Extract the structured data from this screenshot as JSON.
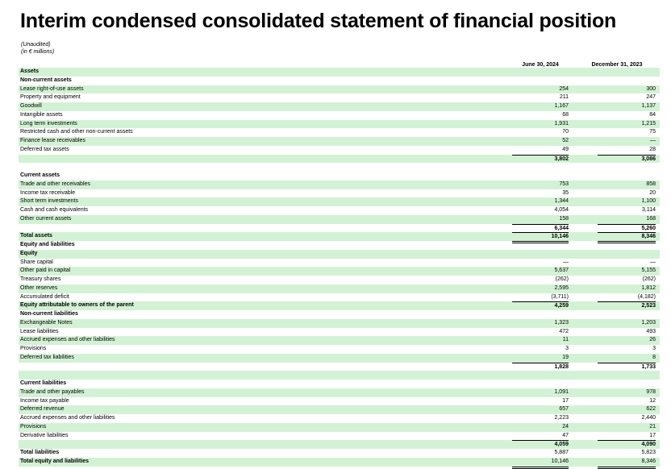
{
  "title": "Interim condensed consolidated statement of financial position",
  "subtitle": {
    "line1": "(Unaudited)",
    "line2": "(in € millions)"
  },
  "columns": {
    "col1": "June 30, 2024",
    "col2": "December 31, 2023"
  },
  "rows": [
    {
      "label": "Assets",
      "v1": "",
      "v2": "",
      "bold": true,
      "shade": true
    },
    {
      "label": "Non-current assets",
      "v1": "",
      "v2": "",
      "bold": true
    },
    {
      "label": "Lease right-of-use assets",
      "v1": "254",
      "v2": "300",
      "shade": true
    },
    {
      "label": "Property and equipment",
      "v1": "211",
      "v2": "247"
    },
    {
      "label": "Goodwill",
      "v1": "1,167",
      "v2": "1,137",
      "shade": true
    },
    {
      "label": "Intangible assets",
      "v1": "68",
      "v2": "84"
    },
    {
      "label": "Long term investments",
      "v1": "1,931",
      "v2": "1,215",
      "shade": true
    },
    {
      "label": "Restricted cash and other non-current assets",
      "v1": "70",
      "v2": "75"
    },
    {
      "label": "Finance lease receivables",
      "v1": "52",
      "v2": "—",
      "shade": true
    },
    {
      "label": "Deferred tax assets",
      "v1": "49",
      "v2": "28"
    },
    {
      "label": "",
      "v1": "3,802",
      "v2": "3,086",
      "shade": true,
      "total": true
    },
    {
      "label": "",
      "v1": "",
      "v2": ""
    },
    {
      "label": "Current assets",
      "v1": "",
      "v2": "",
      "bold": true
    },
    {
      "label": "Trade and other receivables",
      "v1": "753",
      "v2": "858",
      "shade": true
    },
    {
      "label": "Income tax receivable",
      "v1": "35",
      "v2": "20"
    },
    {
      "label": "Short term investments",
      "v1": "1,344",
      "v2": "1,100",
      "shade": true
    },
    {
      "label": "Cash and cash equivalents",
      "v1": "4,054",
      "v2": "3,114"
    },
    {
      "label": "Other current assets",
      "v1": "158",
      "v2": "168",
      "shade": true
    },
    {
      "label": "",
      "v1": "6,344",
      "v2": "5,260",
      "total": true
    },
    {
      "label": "Total assets",
      "v1": "10,146",
      "v2": "8,346",
      "bold": true,
      "shade": true,
      "total": true,
      "final": true
    },
    {
      "label": "Equity and liabilities",
      "v1": "",
      "v2": "",
      "bold": true
    },
    {
      "label": "Equity",
      "v1": "",
      "v2": "",
      "bold": true,
      "shade": true
    },
    {
      "label": "Share capital",
      "v1": "—",
      "v2": "—"
    },
    {
      "label": "Other paid in capital",
      "v1": "5,637",
      "v2": "5,155",
      "shade": true
    },
    {
      "label": "Treasury shares",
      "v1": "(262)",
      "v2": "(262)"
    },
    {
      "label": "Other reserves",
      "v1": "2,595",
      "v2": "1,812",
      "shade": true
    },
    {
      "label": "Accumulated deficit",
      "v1": "(3,711)",
      "v2": "(4,182)"
    },
    {
      "label": "Equity attributable to owners of the parent",
      "v1": "4,259",
      "v2": "2,523",
      "bold": true,
      "shade": true,
      "total": true
    },
    {
      "label": "Non-current liabilities",
      "v1": "",
      "v2": "",
      "bold": true
    },
    {
      "label": "Exchangeable Notes",
      "v1": "1,323",
      "v2": "1,203",
      "shade": true
    },
    {
      "label": "Lease liabilities",
      "v1": "472",
      "v2": "493"
    },
    {
      "label": "Accrued expenses and other liabilities",
      "v1": "11",
      "v2": "26",
      "shade": true
    },
    {
      "label": "Provisions",
      "v1": "3",
      "v2": "3"
    },
    {
      "label": "Deferred tax liabilities",
      "v1": "19",
      "v2": "8",
      "shade": true
    },
    {
      "label": "",
      "v1": "1,828",
      "v2": "1,733",
      "total": true
    },
    {
      "label": "",
      "v1": "",
      "v2": "",
      "shade": true
    },
    {
      "label": "Current liabilities",
      "v1": "",
      "v2": "",
      "bold": true
    },
    {
      "label": "Trade and other payables",
      "v1": "1,091",
      "v2": "978",
      "shade": true
    },
    {
      "label": "Income tax payable",
      "v1": "17",
      "v2": "12"
    },
    {
      "label": "Deferred revenue",
      "v1": "657",
      "v2": "622",
      "shade": true
    },
    {
      "label": "Accrued expenses and other liabilities",
      "v1": "2,223",
      "v2": "2,440"
    },
    {
      "label": "Provisions",
      "v1": "24",
      "v2": "21",
      "shade": true
    },
    {
      "label": "Derivative liabilities",
      "v1": "47",
      "v2": "17"
    },
    {
      "label": "",
      "v1": "4,059",
      "v2": "4,090",
      "shade": true,
      "total": true
    },
    {
      "label": "Total liabilities",
      "v1": "5,887",
      "v2": "5,823",
      "bold": true
    },
    {
      "label": "Total equity and liabilities",
      "v1": "10,146",
      "v2": "8,346",
      "bold": true,
      "shade": true,
      "final": true
    }
  ]
}
